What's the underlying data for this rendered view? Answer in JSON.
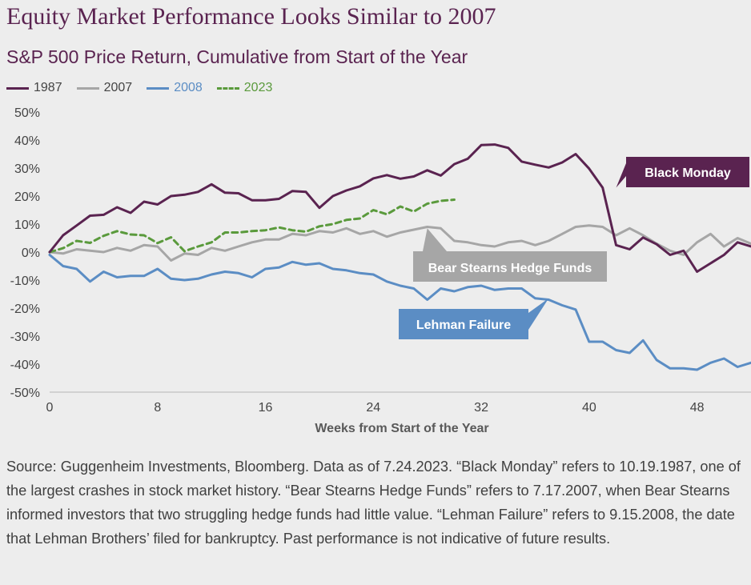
{
  "title": "Equity Market Performance Looks Similar to 2007",
  "subtitle": "S&P 500 Price Return, Cumulative from Start of the Year",
  "source": "Source: Guggenheim Investments, Bloomberg. Data as of 7.24.2023. “Black Monday” refers to 10.19.1987, one of the largest crashes in stock market history. “Bear Stearns Hedge Funds” refers to 7.17.2007, when Bear Stearns informed investors that two struggling hedge funds had little value. “Lehman Failure” refers to 9.15.2008, the date that Lehman Brothers’ filed for bankruptcy. Past performance is not indicative of future results.",
  "colors": {
    "background": "#ededed",
    "title": "#5a2350",
    "1987": "#5a2350",
    "2007": "#a6a6a6",
    "2008": "#5b8dc4",
    "2023": "#5a9a3c"
  },
  "chart_data": {
    "type": "line",
    "xlabel": "Weeks from Start of the Year",
    "ylabel": "",
    "xlim": [
      0,
      52
    ],
    "ylim": [
      -50,
      50
    ],
    "xticks": [
      0,
      8,
      16,
      24,
      32,
      40,
      48
    ],
    "yticks": [
      50,
      40,
      30,
      20,
      10,
      0,
      -10,
      -20,
      -30,
      -40,
      -50
    ],
    "ytick_labels": [
      "50%",
      "40%",
      "30%",
      "20%",
      "10%",
      "0%",
      "-10%",
      "-20%",
      "-30%",
      "-40%",
      "-50%"
    ],
    "legend_position": "top-left",
    "grid": false,
    "series": [
      {
        "name": "1987",
        "color": "#5a2350",
        "dashed": false,
        "values": [
          0,
          6,
          9.5,
          13,
          13.3,
          16,
          14,
          18,
          17,
          20,
          20.5,
          21.5,
          24.2,
          21.2,
          21,
          18.5,
          18.5,
          19,
          21.8,
          21.5,
          15.8,
          20,
          22,
          23.5,
          26.3,
          27.5,
          26.2,
          27,
          29.2,
          27.3,
          31.4,
          33.3,
          38.2,
          38.4,
          37.2,
          32.3,
          31.2,
          30.2,
          32,
          35,
          29.8,
          23,
          2.5,
          1,
          5.2,
          2.8,
          -1,
          0.5,
          -7,
          -4,
          -1,
          3.5,
          2
        ]
      },
      {
        "name": "2007",
        "color": "#a6a6a6",
        "dashed": false,
        "values": [
          0,
          -0.5,
          1,
          0.5,
          0,
          1.5,
          0.5,
          2.5,
          2,
          -3,
          -0.5,
          -1,
          1.5,
          0.5,
          2,
          3.5,
          4.5,
          4.5,
          6.5,
          6,
          7.5,
          7,
          8.5,
          6.5,
          7.5,
          5.5,
          7,
          8,
          9,
          8.5,
          4,
          3.5,
          2.5,
          2,
          3.5,
          4,
          2.5,
          4,
          6.5,
          9,
          9.5,
          9,
          6,
          8.5,
          6,
          3,
          0.5,
          -1,
          3.5,
          6.5,
          2,
          5,
          3
        ]
      },
      {
        "name": "2008",
        "color": "#5b8dc4",
        "dashed": false,
        "values": [
          -1,
          -5,
          -6,
          -10.5,
          -7,
          -9,
          -8.5,
          -8.5,
          -6,
          -9.5,
          -10,
          -9.5,
          -8,
          -7,
          -7.5,
          -9,
          -6,
          -5.5,
          -3.5,
          -4.5,
          -4,
          -6,
          -6.5,
          -7.5,
          -8,
          -10.5,
          -12,
          -13,
          -17,
          -13,
          -14,
          -12.5,
          -12,
          -13.5,
          -13,
          -13,
          -16.5,
          -17,
          -19,
          -20.5,
          -32,
          -32,
          -35,
          -36,
          -31.5,
          -38.5,
          -41.5,
          -41.5,
          -42,
          -39.5,
          -38,
          -41,
          -39.5
        ]
      },
      {
        "name": "2023",
        "color": "#5a9a3c",
        "dashed": true,
        "values": [
          0,
          1.4,
          4,
          3.3,
          5.8,
          7.5,
          6.3,
          6,
          3.2,
          5.3,
          0.3,
          2,
          3.5,
          7,
          7,
          7.5,
          7.8,
          8.8,
          7.8,
          7.3,
          9.2,
          10,
          11.5,
          12,
          15,
          13.5,
          16.3,
          14.5,
          17.3,
          18.3,
          18.7
        ]
      }
    ],
    "annotations": [
      {
        "label": "Black Monday",
        "color": "#5a2350",
        "arrow_to": [
          42,
          23
        ]
      },
      {
        "label": "Bear Stearns Hedge Funds",
        "color": "#a6a6a6",
        "arrow_to": [
          28,
          8.5
        ]
      },
      {
        "label": "Lehman Failure",
        "color": "#5b8dc4",
        "arrow_to": [
          37,
          -16.5
        ]
      }
    ]
  }
}
